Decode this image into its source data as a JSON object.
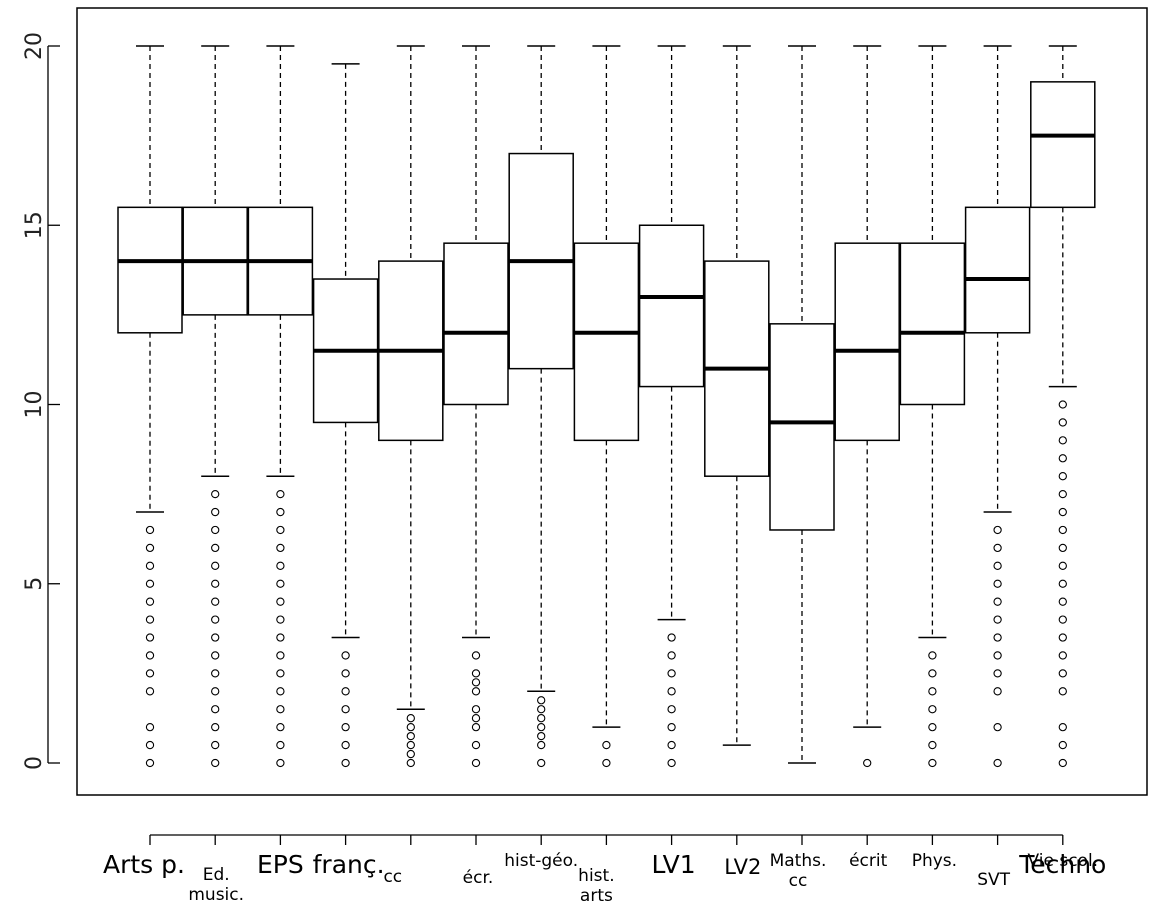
{
  "chart_data": {
    "type": "boxplot",
    "title": "",
    "xlabel": "",
    "ylabel": "",
    "ylim": [
      0,
      20
    ],
    "yticks": [
      0,
      5,
      10,
      15,
      20
    ],
    "grid": false,
    "legend": "none",
    "categories": [
      {
        "label": "Arts p.",
        "min": 7,
        "q1": 12,
        "median": 14,
        "q3": 15.5,
        "max": 20,
        "outliers": [
          0,
          0.5,
          1,
          2,
          2.5,
          3,
          3.5,
          4,
          4.5,
          5,
          5.5,
          6,
          6.5
        ]
      },
      {
        "label": "Ed. music.",
        "min": 8,
        "q1": 12.5,
        "median": 14,
        "q3": 15.5,
        "max": 20,
        "outliers": [
          0,
          0.5,
          1,
          1.5,
          2,
          2.5,
          3,
          3.5,
          4,
          4.5,
          5,
          5.5,
          6,
          6.5,
          7,
          7.5
        ]
      },
      {
        "label": "EPS",
        "min": 8,
        "q1": 12.5,
        "median": 14,
        "q3": 15.5,
        "max": 20,
        "outliers": [
          0,
          0.5,
          1,
          1.5,
          2,
          2.5,
          3,
          3.5,
          4,
          4.5,
          5,
          5.5,
          6,
          6.5,
          7,
          7.5
        ]
      },
      {
        "label": "franç. cc",
        "min": 3.5,
        "q1": 9.5,
        "median": 11.5,
        "q3": 13.5,
        "max": 19.5,
        "outliers": [
          0,
          0.5,
          1,
          1.5,
          2,
          2.5,
          3
        ]
      },
      {
        "label": "franç. écr.",
        "min": 1.5,
        "q1": 9,
        "median": 11.5,
        "q3": 14,
        "max": 20,
        "outliers": [
          0,
          0.25,
          0.5,
          0.75,
          1,
          1.25
        ]
      },
      {
        "label": "hist-géo.",
        "min": 3.5,
        "q1": 10,
        "median": 12,
        "q3": 14.5,
        "max": 20,
        "outliers": [
          0,
          0.5,
          1,
          1.25,
          1.5,
          2,
          2.25,
          2.5,
          3
        ]
      },
      {
        "label": "hist. arts",
        "min": 2,
        "q1": 11,
        "median": 14,
        "q3": 17,
        "max": 20,
        "outliers": [
          0,
          0.5,
          0.75,
          1,
          1.25,
          1.5,
          1.75
        ]
      },
      {
        "label": "LV1",
        "min": 1,
        "q1": 9,
        "median": 12,
        "q3": 14.5,
        "max": 20,
        "outliers": [
          0,
          0.5
        ]
      },
      {
        "label": "LV2",
        "min": 4,
        "q1": 10.5,
        "median": 13,
        "q3": 15,
        "max": 20,
        "outliers": [
          0,
          0.5,
          1,
          1.5,
          2,
          2.5,
          3,
          3.5
        ]
      },
      {
        "label": "Maths. cc",
        "min": 0.5,
        "q1": 8,
        "median": 11,
        "q3": 14,
        "max": 20,
        "outliers": []
      },
      {
        "label": "Maths. écrit",
        "min": 0,
        "q1": 6.5,
        "median": 9.5,
        "q3": 12.25,
        "max": 20,
        "outliers": []
      },
      {
        "label": "Phys.",
        "min": 1,
        "q1": 9,
        "median": 11.5,
        "q3": 14.5,
        "max": 20,
        "outliers": [
          0
        ]
      },
      {
        "label": "SVT",
        "min": 3.5,
        "q1": 10,
        "median": 12,
        "q3": 14.5,
        "max": 20,
        "outliers": [
          0,
          0.5,
          1,
          1.5,
          2,
          2.5,
          3
        ]
      },
      {
        "label": "Techno",
        "min": 7,
        "q1": 12,
        "median": 13.5,
        "q3": 15.5,
        "max": 20,
        "outliers": [
          0,
          1,
          2,
          2.5,
          3,
          3.5,
          4,
          4.5,
          5,
          5.5,
          6,
          6.5
        ]
      },
      {
        "label": "Vie scol.",
        "min": 10.5,
        "q1": 15.5,
        "median": 17.5,
        "q3": 19,
        "max": 20,
        "outliers": [
          0,
          0.5,
          1,
          2,
          2.5,
          3,
          3.5,
          4,
          4.5,
          5,
          5.5,
          6,
          6.5,
          7,
          7.5,
          8,
          8.5,
          9,
          9.5,
          10
        ]
      }
    ],
    "axis_labels": [
      {
        "lines": [
          "Arts p."
        ],
        "row": "upper",
        "size": "large"
      },
      {
        "lines": [
          "Ed.",
          "music."
        ],
        "row": "lower",
        "size": "small"
      },
      {
        "lines": [
          "EPS"
        ],
        "row": "upper",
        "size": "large"
      },
      {
        "lines": [
          "franç."
        ],
        "row": "upper",
        "size": "large"
      },
      {
        "lines": [
          "cc"
        ],
        "row": "lower",
        "size": "small"
      },
      {
        "lines": [
          "écr."
        ],
        "row": "lower",
        "size": "small"
      },
      {
        "lines": [
          "hist-géo."
        ],
        "row": "upper",
        "size": "small"
      },
      {
        "lines": [
          "hist.",
          "arts"
        ],
        "row": "lower",
        "size": "small"
      },
      {
        "lines": [
          "LV1"
        ],
        "row": "upper",
        "size": "large"
      },
      {
        "lines": [
          "LV2"
        ],
        "row": "upper",
        "size": "medium"
      },
      {
        "lines": [
          "Maths.",
          "cc"
        ],
        "row": "upper",
        "size": "small"
      },
      {
        "lines": [
          "écrit"
        ],
        "row": "upper",
        "size": "small"
      },
      {
        "lines": [
          "Phys."
        ],
        "row": "upper",
        "size": "small"
      },
      {
        "lines": [
          "SVT"
        ],
        "row": "lower",
        "size": "small"
      },
      {
        "lines": [
          "Techno"
        ],
        "row": "upper",
        "size": "large"
      },
      {
        "lines": [
          "Vie scol."
        ],
        "row": "upper",
        "size": "small"
      }
    ]
  }
}
